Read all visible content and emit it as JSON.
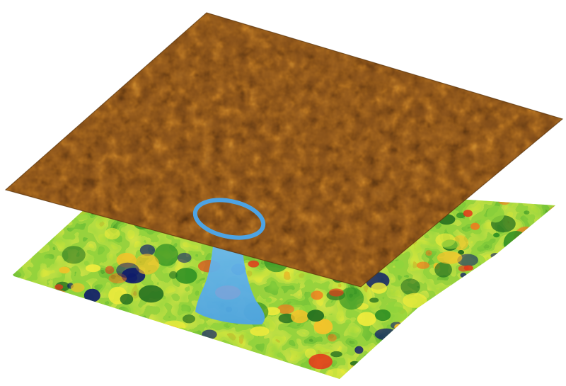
{
  "scene": {
    "description_free": true,
    "layers": [
      {
        "name": "stm-topograph-layer",
        "palette": [
          "#2a1606",
          "#4a2a0c",
          "#6b3d12",
          "#8e5418",
          "#b06d22",
          "#cf8a31",
          "#e8a948",
          "#f5c670"
        ],
        "base_color": "#8a531c"
      },
      {
        "name": "gap-map-layer",
        "palette": [
          "#0d1a6b",
          "#1f6b1e",
          "#2e8f23",
          "#55b832",
          "#8fd43c",
          "#c9e84a",
          "#f0ec3c",
          "#f6c129",
          "#f07a1e",
          "#e3381a"
        ],
        "base_color": "#8fd43c"
      }
    ],
    "link": {
      "color": "#5aa9e6",
      "ring_color": "#4da3e3"
    }
  }
}
